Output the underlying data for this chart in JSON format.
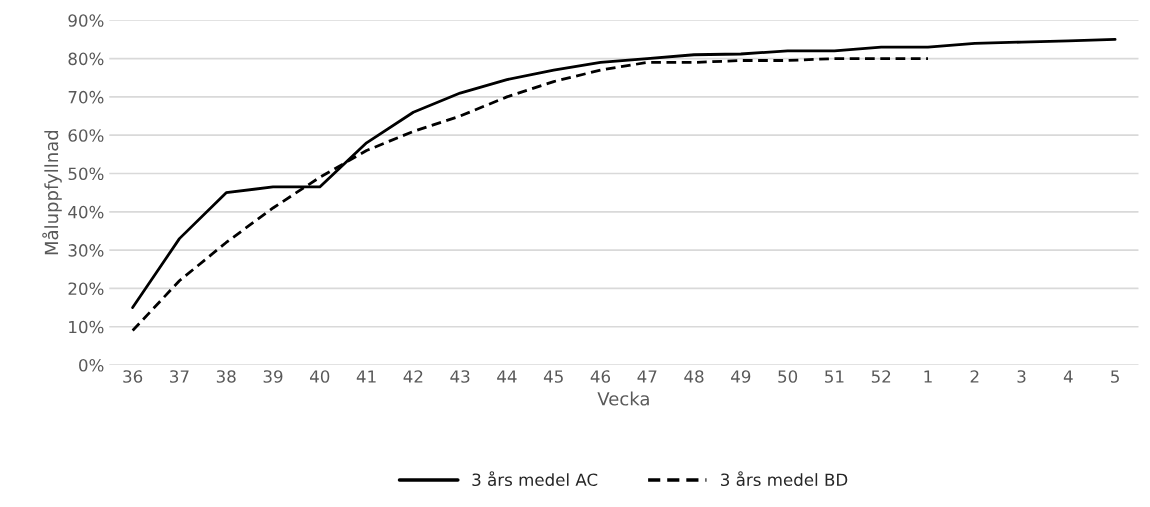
{
  "chart_data": {
    "type": "line",
    "xlabel": "Vecka",
    "ylabel": "Måluppfyllnad",
    "categories": [
      "36",
      "37",
      "38",
      "39",
      "40",
      "41",
      "42",
      "43",
      "44",
      "45",
      "46",
      "47",
      "48",
      "49",
      "50",
      "51",
      "52",
      "1",
      "2",
      "3",
      "4",
      "5"
    ],
    "series": [
      {
        "name": "3 års medel AC",
        "color": "#000000",
        "line_style": "solid",
        "values": [
          15,
          33,
          45,
          46.5,
          46.5,
          58,
          66,
          71,
          74.5,
          77,
          79,
          80,
          81,
          81.2,
          82,
          82,
          83,
          83,
          84,
          84.3,
          84.6,
          85
        ]
      },
      {
        "name": "3 års medel BD",
        "color": "#000000",
        "line_style": "dashed",
        "values": [
          9,
          22,
          32,
          41,
          49,
          56,
          61,
          65,
          70,
          74,
          77,
          79,
          79,
          79.5,
          79.5,
          80,
          80,
          80,
          null,
          null,
          null,
          null
        ]
      }
    ],
    "ylim": [
      0,
      90
    ],
    "yticks": [
      {
        "value": 0,
        "label": "0%"
      },
      {
        "value": 10,
        "label": "10%"
      },
      {
        "value": 20,
        "label": "20%"
      },
      {
        "value": 30,
        "label": "30%"
      },
      {
        "value": 40,
        "label": "40%"
      },
      {
        "value": 50,
        "label": "50%"
      },
      {
        "value": 60,
        "label": "60%"
      },
      {
        "value": 70,
        "label": "70%"
      },
      {
        "value": 80,
        "label": "80%"
      },
      {
        "value": 90,
        "label": "90%"
      }
    ],
    "grid": "y",
    "legend": "bottom",
    "marker": "none"
  }
}
